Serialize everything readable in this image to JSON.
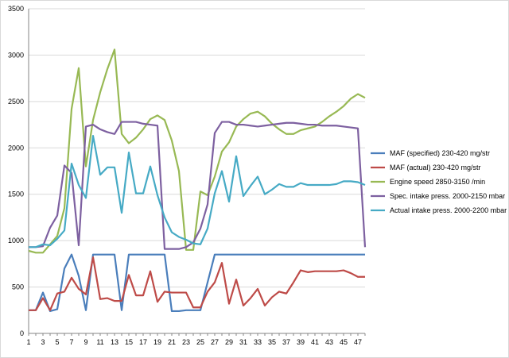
{
  "chart_data": {
    "type": "line",
    "title": "",
    "xlabel": "",
    "ylabel": "",
    "ylim": [
      0,
      3500
    ],
    "yticks": [
      0,
      500,
      1000,
      1500,
      2000,
      2500,
      3000,
      3500
    ],
    "x": [
      1,
      2,
      3,
      4,
      5,
      6,
      7,
      8,
      9,
      10,
      11,
      12,
      13,
      14,
      15,
      16,
      17,
      18,
      19,
      20,
      21,
      22,
      23,
      24,
      25,
      26,
      27,
      28,
      29,
      30,
      31,
      32,
      33,
      34,
      35,
      36,
      37,
      38,
      39,
      40,
      41,
      42,
      43,
      44,
      45,
      46,
      47,
      48
    ],
    "xticks": [
      1,
      3,
      5,
      7,
      9,
      11,
      13,
      15,
      17,
      19,
      21,
      23,
      25,
      27,
      29,
      31,
      33,
      35,
      37,
      39,
      41,
      43,
      45,
      47
    ],
    "grid": true,
    "legend_position": "right",
    "series": [
      {
        "name": "MAF (specified) 230-420  mg/str",
        "color": "#4a7ebb",
        "values": [
          250,
          250,
          440,
          240,
          260,
          700,
          850,
          620,
          250,
          850,
          850,
          850,
          850,
          250,
          850,
          850,
          850,
          850,
          850,
          850,
          240,
          240,
          250,
          250,
          250,
          550,
          850,
          850,
          850,
          850,
          850,
          850,
          850,
          850,
          850,
          850,
          850,
          850,
          850,
          850,
          850,
          850,
          850,
          850,
          850,
          850,
          850,
          850
        ]
      },
      {
        "name": "MAF (actual)  230-420  mg/str",
        "color": "#be4b48",
        "values": [
          250,
          250,
          380,
          250,
          430,
          450,
          600,
          480,
          420,
          820,
          370,
          380,
          350,
          350,
          630,
          410,
          410,
          670,
          340,
          450,
          440,
          440,
          440,
          280,
          280,
          450,
          550,
          760,
          320,
          580,
          300,
          380,
          480,
          300,
          390,
          450,
          430,
          550,
          680,
          660,
          670,
          670,
          670,
          670,
          680,
          650,
          610,
          610
        ]
      },
      {
        "name": "Engine speed 2850-3150  /min",
        "color": "#98b954",
        "values": [
          890,
          870,
          870,
          960,
          1050,
          1350,
          2420,
          2860,
          1800,
          2300,
          2600,
          2850,
          3060,
          2150,
          2050,
          2110,
          2200,
          2310,
          2350,
          2300,
          2080,
          1750,
          900,
          900,
          1530,
          1490,
          1690,
          1960,
          2060,
          2230,
          2310,
          2370,
          2390,
          2340,
          2260,
          2200,
          2150,
          2150,
          2190,
          2210,
          2230,
          2280,
          2340,
          2390,
          2450,
          2530,
          2580,
          2540
        ]
      },
      {
        "name": "Spec. intake press. 2000-2150  mbar",
        "color": "#7d60a0",
        "values": [
          930,
          930,
          940,
          1140,
          1270,
          1810,
          1730,
          950,
          2230,
          2250,
          2200,
          2170,
          2150,
          2280,
          2280,
          2280,
          2260,
          2250,
          2240,
          910,
          910,
          910,
          930,
          980,
          1130,
          1390,
          2160,
          2280,
          2280,
          2250,
          2250,
          2240,
          2230,
          2240,
          2250,
          2260,
          2270,
          2270,
          2260,
          2250,
          2250,
          2240,
          2240,
          2240,
          2230,
          2220,
          2210,
          930
        ]
      },
      {
        "name": "Actual intake press. 2000-2200  mbar",
        "color": "#46aac5",
        "values": [
          930,
          930,
          960,
          950,
          1020,
          1110,
          1830,
          1600,
          1460,
          2130,
          1710,
          1790,
          1790,
          1300,
          1950,
          1510,
          1510,
          1800,
          1490,
          1250,
          1090,
          1040,
          1010,
          970,
          960,
          1130,
          1510,
          1750,
          1420,
          1910,
          1480,
          1590,
          1690,
          1500,
          1550,
          1610,
          1580,
          1580,
          1620,
          1600,
          1600,
          1600,
          1600,
          1610,
          1640,
          1640,
          1630,
          1600
        ]
      }
    ]
  }
}
